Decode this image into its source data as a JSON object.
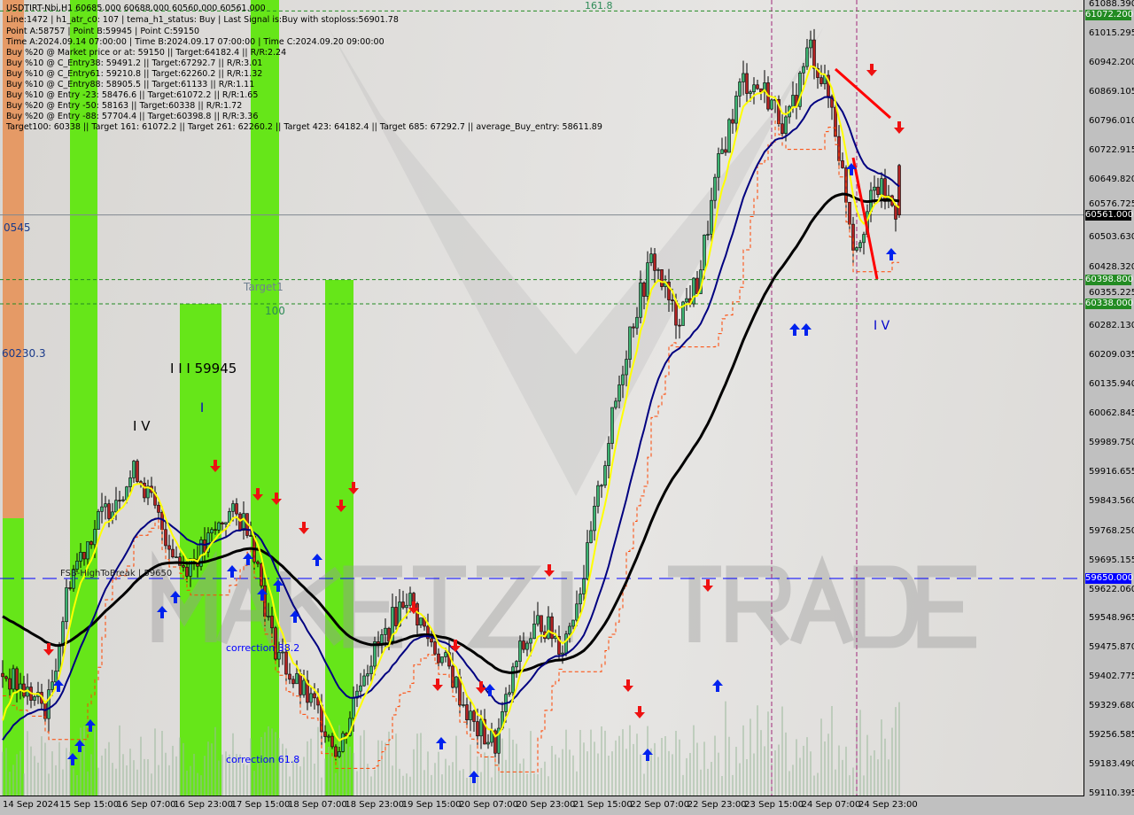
{
  "header": {
    "title": "USDTIRT-Nbi,H1  60685.000 60688.000 60560.000 60561.000",
    "lines": [
      "Line:1472 | h1_atr_c0: 107 | tema_h1_status: Buy | Last Signal is:Buy with stoploss:56901.78",
      "Point A:58757 | Point B:59945 | Point C:59150",
      "Time A:2024.09.14 07:00:00 | Time B:2024.09.17 07:00:00 | Time C:2024.09.20 09:00:00",
      "Buy %20 @ Market price or at: 59150 || Target:64182.4 || R/R:2.24",
      "Buy %10 @ C_Entry38: 59491.2 || Target:67292.7 || R/R:3.01",
      "Buy %10 @ C_Entry61: 59210.8 || Target:62260.2 || R/R:1.32",
      "Buy %10 @ C_Entry88: 58905.5 || Target:61133 || R/R:1.11",
      "Buy %10 @ Entry -23: 58476.6 || Target:61072.2 || R/R:1.65",
      "Buy %20 @ Entry -50: 58163 || Target:60338 || R/R:1.72",
      "Buy %20 @ Entry -88: 57704.4 || Target:60398.8 || R/R:3.36",
      "Target100: 60338 || Target 161: 61072.2 || Target 261: 62260.2 || Target 423: 64182.4 || Target 685: 67292.7 || average_Buy_entry: 58611.89"
    ]
  },
  "annotations": {
    "fib_161": "161.8",
    "left_0545": "0545",
    "left_60230": "60230.3",
    "wave_iii": "I I I 59945",
    "wave_iv_left": "I V",
    "wave_i": "I",
    "target1": "Target1",
    "level_100": "100",
    "fsb": "FSB-HighToBreak | 59650",
    "corr382": "correction 38.2",
    "corr618": "correction 61.8",
    "wave_iv_right": "I V",
    "watermark": "MAKETZI TRADE"
  },
  "colors": {
    "bull": "#3cb371",
    "bear": "#b22222",
    "ema_fast": "#ffff00",
    "ema_mid": "#000080",
    "ema_slow": "#000000",
    "band_green": "#66e619",
    "band_orange": "#e59a66",
    "target_line": "#228b22",
    "fsb_line": "#0000ff",
    "trendline": "#ff0000",
    "stop_line": "#ff4500"
  },
  "chart_data": {
    "type": "candlestick",
    "symbol": "USDTIRT-Nbi",
    "timeframe": "H1",
    "last": {
      "open": 60685.0,
      "high": 60688.0,
      "low": 60560.0,
      "close": 60561.0
    },
    "ylim": [
      59110.395,
      61088.39
    ],
    "y_ticks": [
      "61088.390",
      "61015.295",
      "60942.200",
      "60869.105",
      "60796.010",
      "60722.915",
      "60649.820",
      "60576.725",
      "60503.630",
      "60428.320",
      "60355.225",
      "60282.130",
      "60209.035",
      "60135.940",
      "60062.845",
      "59989.750",
      "59916.655",
      "59843.560",
      "59768.250",
      "59695.155",
      "59622.060",
      "59548.965",
      "59475.870",
      "59402.775",
      "59329.680",
      "59256.585",
      "59183.490",
      "59110.395"
    ],
    "x_ticks": [
      "14 Sep 2024",
      "15 Sep 15:00",
      "16 Sep 07:00",
      "16 Sep 23:00",
      "17 Sep 15:00",
      "18 Sep 07:00",
      "18 Sep 23:00",
      "19 Sep 15:00",
      "20 Sep 07:00",
      "20 Sep 23:00",
      "21 Sep 15:00",
      "22 Sep 07:00",
      "22 Sep 23:00",
      "23 Sep 15:00",
      "24 Sep 07:00",
      "24 Sep 23:00"
    ],
    "price_tags": [
      {
        "value": "61072.200",
        "color": "#228b22"
      },
      {
        "value": "60561.000",
        "color": "#000000"
      },
      {
        "value": "60398.800",
        "color": "#228b22"
      },
      {
        "value": "60338.000",
        "color": "#228b22"
      },
      {
        "value": "59650.000",
        "color": "#0000ff"
      }
    ],
    "levels": {
      "target_161": 61072.2,
      "target_lvl2": 60398.8,
      "target_100": 60338,
      "fsb_high": 59650,
      "current": 60561
    },
    "approx_close_path": [
      59412,
      59368,
      59323,
      59656,
      59768,
      59856,
      59923,
      59790,
      59679,
      59723,
      59812,
      59790,
      59501,
      59390,
      59323,
      59213,
      59412,
      59501,
      59612,
      59501,
      59412,
      59279,
      59235,
      59456,
      59545,
      59480,
      59679,
      59990,
      60278,
      60455,
      60300,
      60389,
      60700,
      60900,
      60870,
      60780,
      60988,
      60830,
      60478,
      60633,
      60561
    ]
  }
}
